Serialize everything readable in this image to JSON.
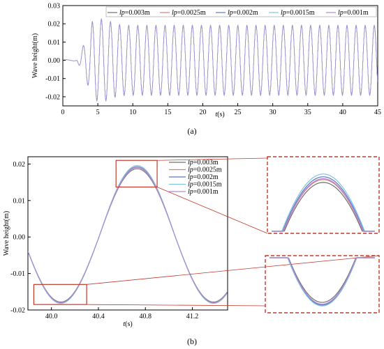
{
  "panel_a_label": "(a)",
  "panel_b_label": "(b)",
  "chart_data": [
    {
      "type": "line",
      "panel": "(a)",
      "xlabel_italic": "t",
      "xlabel_unit": "(s)",
      "ylabel": "Wave height(m)",
      "xlim": [
        0,
        45
      ],
      "ylim": [
        -0.025,
        0.03
      ],
      "xticks": [
        "0",
        "5",
        "10",
        "15",
        "20",
        "25",
        "30",
        "35",
        "40",
        "45"
      ],
      "yticks": [
        "-0.02",
        "-0.01",
        "0.00",
        "0.01",
        "0.02",
        "0.03"
      ],
      "legend_placement": "top",
      "series": [
        {
          "prefix": "lp",
          "value": "=0.003m",
          "color": "#6e6e6e"
        },
        {
          "prefix": "lp",
          "value": "=0.0025m",
          "color": "#e07a7a"
        },
        {
          "prefix": "lp",
          "value": "=0.002m",
          "color": "#5a78c8"
        },
        {
          "prefix": "lp",
          "value": "=0.0015m",
          "color": "#7cc4e0"
        },
        {
          "prefix": "lp",
          "value": "=0.001m",
          "color": "#b08ad8"
        }
      ],
      "description_values": {
        "wave_period_s": 1.3,
        "wave_onset_s": 2.0,
        "steady_amplitude_m": 0.019,
        "first_peak_s": 4.9,
        "first_peak_m": 0.023,
        "first_trough_s": 5.4,
        "first_trough_m": -0.022,
        "end_time_s": 45
      }
    },
    {
      "type": "line",
      "panel": "(b)",
      "xlabel_italic": "t",
      "xlabel_unit": "(s)",
      "ylabel": "Wave height(m)",
      "xlim": [
        39.8,
        41.5
      ],
      "ylim": [
        -0.02,
        0.022
      ],
      "xticks": [
        "40.0",
        "40.4",
        "40.8",
        "41.2"
      ],
      "yticks": [
        "-0.02",
        "-0.01",
        "0.00",
        "0.01",
        "0.02"
      ],
      "legend_placement": "top-right",
      "series": [
        {
          "prefix": "lp",
          "value": "=0.003m",
          "color": "#6e6e6e",
          "peak": 0.0187,
          "trough": -0.0178
        },
        {
          "prefix": "lp",
          "value": "=0.0025m",
          "color": "#e07a7a",
          "peak": 0.019,
          "trough": -0.018
        },
        {
          "prefix": "lp",
          "value": "=0.002m",
          "color": "#5a78c8",
          "peak": 0.0193,
          "trough": -0.0181
        },
        {
          "prefix": "lp",
          "value": "=0.0015m",
          "color": "#7cc4e0",
          "peak": 0.0196,
          "trough": -0.0182
        },
        {
          "prefix": "lp",
          "value": "=0.001m",
          "color": "#b08ad8",
          "peak": 0.0191,
          "trough": -0.018
        }
      ],
      "wave_period_s": 1.3,
      "trough_time_s": 40.08,
      "peak_time_s": 40.73,
      "zoom_boxes": [
        {
          "region": "peak",
          "x_range": [
            40.55,
            40.9
          ],
          "y_range": [
            0.0137,
            0.021
          ]
        },
        {
          "region": "trough",
          "x_range": [
            39.85,
            40.3
          ],
          "y_range": [
            -0.0185,
            -0.013
          ]
        }
      ],
      "highlight_color": "#c0392b"
    }
  ]
}
